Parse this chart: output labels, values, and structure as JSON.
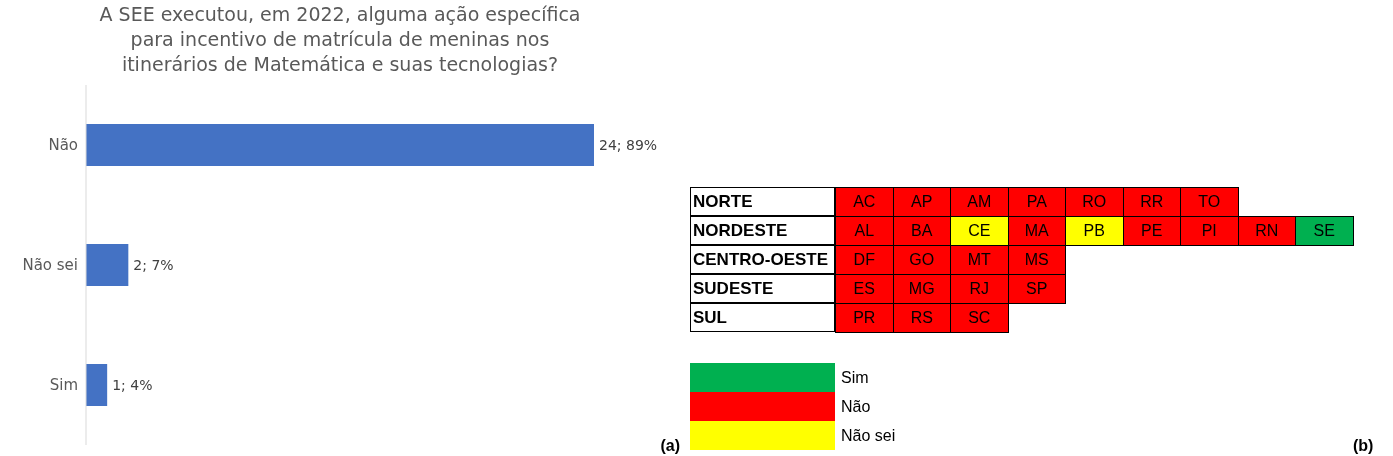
{
  "chart_data": [
    {
      "type": "bar",
      "orientation": "horizontal",
      "title": "A SEE executou, em 2022, alguma ação específica para incentivo de matrícula de meninas nos itinerários de Matemática e suas tecnologias?",
      "categories": [
        "Não",
        "Não sei",
        "Sim"
      ],
      "values": [
        24,
        2,
        1
      ],
      "color": "#4472c4",
      "value_labels": [
        "24; 89%",
        "2; 7%",
        "1; 4%"
      ],
      "tick_labels": "y",
      "annotations": [
        "(a)"
      ]
    },
    {
      "type": "other",
      "y_categories": [
        "NORTE",
        "NORDESTE",
        "CENTRO-OESTE",
        "SUDESTE",
        "SUL"
      ],
      "cell_labels": [
        [
          "AC",
          "AP",
          "AM",
          "PA",
          "RO",
          "RR",
          "TO"
        ],
        [
          "AL",
          "BA",
          "CE",
          "MA",
          "PB",
          "PE",
          "PI",
          "RN",
          "SE"
        ],
        [
          "DF",
          "GO",
          "MT",
          "MS"
        ],
        [
          "ES",
          "MG",
          "RJ",
          "SP"
        ],
        [
          "PR",
          "RS",
          "SC"
        ]
      ],
      "colors": [
        [
          "#ff0000",
          "#ff0000",
          "#ff0000",
          "#ff0000",
          "#ff0000",
          "#ff0000",
          "#ff0000"
        ],
        [
          "#ff0000",
          "#ff0000",
          "#ffff00",
          "#ff0000",
          "#ffff00",
          "#ff0000",
          "#ff0000",
          "#ff0000",
          "#00b050"
        ],
        [
          "#ff0000",
          "#ff0000",
          "#ff0000",
          "#ff0000"
        ],
        [
          "#ff0000",
          "#ff0000",
          "#ff0000",
          "#ff0000"
        ],
        [
          "#ff0000",
          "#ff0000",
          "#ff0000"
        ]
      ],
      "series": [
        {
          "name": "Sim",
          "color": "#00b050"
        },
        {
          "name": "Não",
          "color": "#ff0000"
        },
        {
          "name": "Não sei",
          "color": "#ffff00"
        }
      ],
      "legend": "bottom left",
      "annotations": [
        "(b)"
      ]
    }
  ]
}
